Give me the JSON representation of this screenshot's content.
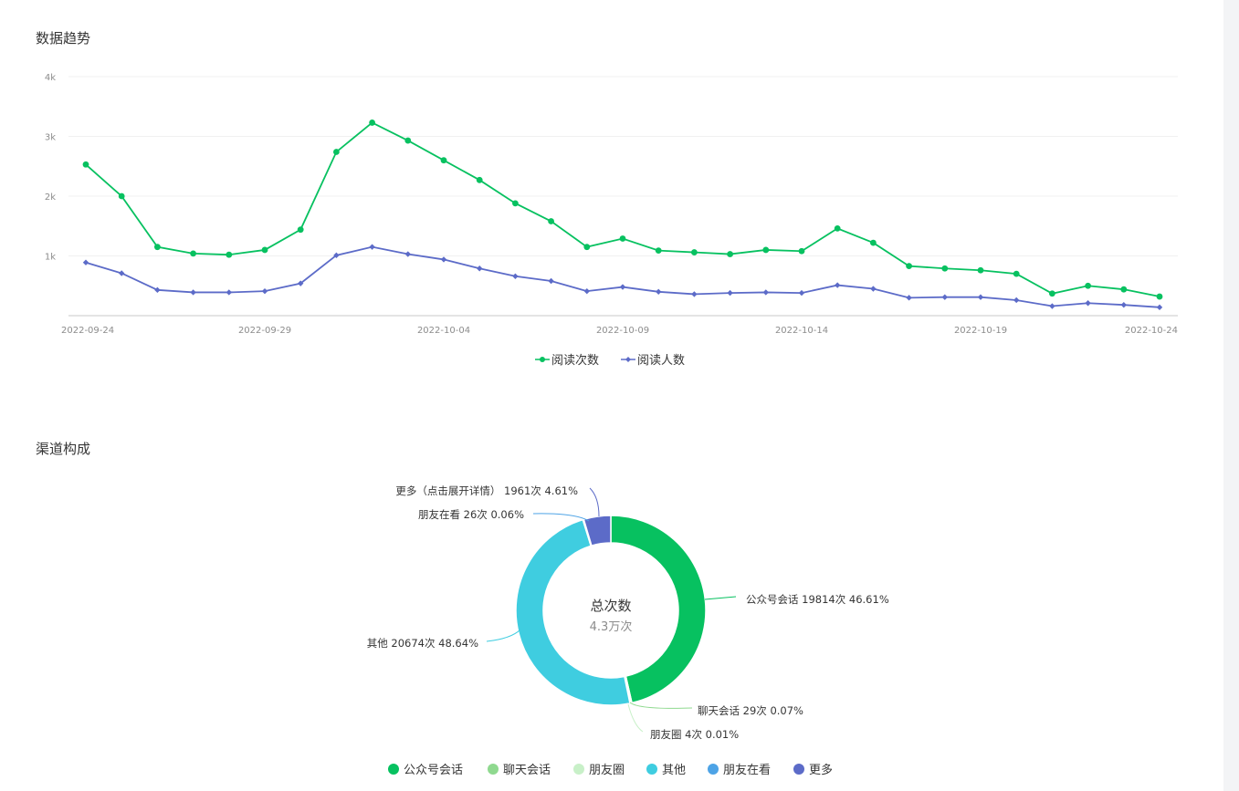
{
  "sections": {
    "trend_title": "数据趋势",
    "channel_title": "渠道构成"
  },
  "chart_data": [
    {
      "type": "line",
      "x": [
        "2022-09-24",
        "2022-09-25",
        "2022-09-26",
        "2022-09-27",
        "2022-09-28",
        "2022-09-29",
        "2022-09-30",
        "2022-10-01",
        "2022-10-02",
        "2022-10-03",
        "2022-10-04",
        "2022-10-05",
        "2022-10-06",
        "2022-10-07",
        "2022-10-08",
        "2022-10-09",
        "2022-10-10",
        "2022-10-11",
        "2022-10-12",
        "2022-10-13",
        "2022-10-14",
        "2022-10-15",
        "2022-10-16",
        "2022-10-17",
        "2022-10-18",
        "2022-10-19",
        "2022-10-20",
        "2022-10-21",
        "2022-10-22",
        "2022-10-23",
        "2022-10-24"
      ],
      "x_ticks": [
        "2022-09-24",
        "2022-09-29",
        "2022-10-04",
        "2022-10-09",
        "2022-10-14",
        "2022-10-19",
        "2022-10-24"
      ],
      "y_ticks": [
        "1k",
        "2k",
        "3k",
        "4k"
      ],
      "ylim": [
        0,
        4000
      ],
      "grid": true,
      "legend_position": "bottom",
      "series": [
        {
          "name": "阅读次数",
          "color": "#07c160",
          "marker": "circle",
          "values": [
            2530,
            2000,
            1150,
            1040,
            1020,
            1100,
            1440,
            2740,
            3230,
            2930,
            2600,
            2270,
            1880,
            1580,
            1150,
            1290,
            1090,
            1060,
            1030,
            1100,
            1080,
            1460,
            1220,
            830,
            790,
            760,
            700,
            370,
            500,
            440,
            320
          ]
        },
        {
          "name": "阅读人数",
          "color": "#5c6bc8",
          "marker": "diamond",
          "values": [
            890,
            710,
            430,
            390,
            390,
            410,
            540,
            1010,
            1150,
            1030,
            940,
            790,
            660,
            580,
            410,
            480,
            400,
            360,
            380,
            390,
            380,
            510,
            450,
            300,
            310,
            310,
            260,
            160,
            210,
            180,
            140
          ]
        }
      ]
    },
    {
      "type": "pie",
      "style": "donut",
      "center_title": "总次数",
      "center_value": "4.3万次",
      "slices": [
        {
          "name": "公众号会话",
          "value": 19814,
          "percent": 46.61,
          "color": "#07c160",
          "label": "公众号会话 19814次 46.61%"
        },
        {
          "name": "聊天会话",
          "value": 29,
          "percent": 0.07,
          "color": "#8fd98f",
          "label": "聊天会话 29次 0.07%"
        },
        {
          "name": "朋友圈",
          "value": 4,
          "percent": 0.01,
          "color": "#c8f0c8",
          "label": "朋友圈 4次 0.01%"
        },
        {
          "name": "其他",
          "value": 20674,
          "percent": 48.64,
          "color": "#3fcde0",
          "label": "其他 20674次 48.64%"
        },
        {
          "name": "朋友在看",
          "value": 26,
          "percent": 0.06,
          "color": "#4da3e6",
          "label": "朋友在看 26次 0.06%"
        },
        {
          "name": "更多",
          "value": 1961,
          "percent": 4.61,
          "color": "#5c6bc8",
          "label": "更多（点击展开详情） 1961次 4.61%"
        }
      ],
      "legend": [
        "公众号会话",
        "聊天会话",
        "朋友圈",
        "其他",
        "朋友在看",
        "更多"
      ],
      "legend_position": "bottom"
    }
  ]
}
